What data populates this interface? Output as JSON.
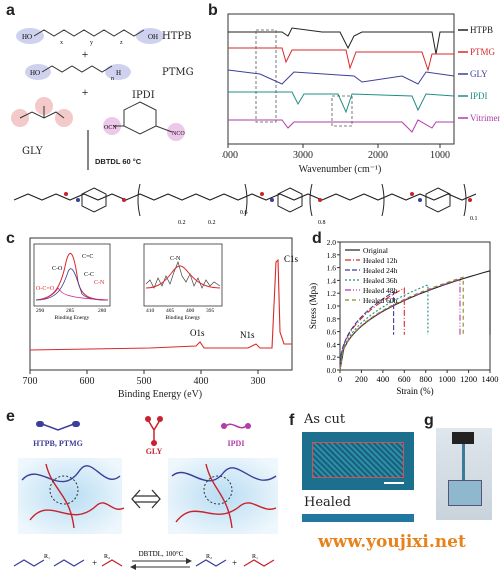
{
  "panels": {
    "a": {
      "label": "a",
      "molecules": [
        "HTPB",
        "PTMG",
        "GLY",
        "IPDI"
      ],
      "subscripts": {
        "htpb_x": "x",
        "htpb_y": "y",
        "htpb_z": "z",
        "ptmg_n": "n"
      },
      "plus": "+",
      "catalyst": "DBTDL 60 °C",
      "chain_labels": [
        "0.2",
        "0.2",
        "0.6",
        "0.8",
        "0.1"
      ]
    },
    "b": {
      "label": "b",
      "xlabel": "Wavenumber (cm⁻¹)",
      "legend": [
        {
          "name": "HTPB",
          "color": "#222222"
        },
        {
          "name": "PTMG",
          "color": "#d9292a"
        },
        {
          "name": "GLY",
          "color": "#3b3f9a"
        },
        {
          "name": "IPDI",
          "color": "#1f8f86"
        },
        {
          "name": "Vitrimer",
          "color": "#b23ca8"
        }
      ],
      "xticks": [
        "4000",
        "3000",
        "2000",
        "1000"
      ]
    },
    "c": {
      "label": "c",
      "xlabel": "Binding Energy (eV)",
      "xticks": [
        "700",
        "600",
        "500",
        "400",
        "300"
      ],
      "peaks": [
        "C1s",
        "O1s",
        "N1s"
      ],
      "inset1": {
        "xlabel": "Binding Energy",
        "xticks": [
          "290",
          "285",
          "280"
        ],
        "labels": [
          "C=C",
          "C-O",
          "C-C",
          "C-N",
          "O-C=O"
        ]
      },
      "inset2": {
        "xlabel": "Binding Energy",
        "xticks": [
          "410",
          "405",
          "400",
          "395"
        ],
        "labels": [
          "C-N"
        ]
      }
    },
    "d": {
      "label": "d",
      "xlabel": "Strain (%)",
      "ylabel": "Stress (Mpa)"
    },
    "e": {
      "label": "e",
      "legend": [
        {
          "name": "HTPB, PTMG",
          "color": "#3b3f9a"
        },
        {
          "name": "GLY",
          "color": "#c8232c"
        },
        {
          "name": "IPDI",
          "color": "#b23ca8"
        }
      ],
      "reaction": "DBTDL, 100°C",
      "r1": "R₁",
      "r2": "R₂",
      "plus": "+"
    },
    "f": {
      "label": "f",
      "as_cut": "As cut",
      "healed": "Healed"
    },
    "g": {
      "label": "g"
    }
  },
  "chart_data": [
    {
      "type": "line",
      "panel": "d",
      "xlabel": "Strain (%)",
      "ylabel": "Stress (Mpa)",
      "xlim": [
        0,
        1400
      ],
      "ylim": [
        0,
        2.0
      ],
      "xticks": [
        0,
        200,
        400,
        600,
        800,
        1000,
        1200,
        1400
      ],
      "yticks": [
        0.0,
        0.2,
        0.4,
        0.6,
        0.8,
        1.0,
        1.2,
        1.4,
        1.6,
        1.8,
        2.0
      ],
      "legend_position": "top-left",
      "series": [
        {
          "name": "Original",
          "color": "#222222",
          "dash": "",
          "break_strain": 1400,
          "break_stress": 1.55
        },
        {
          "name": "Healed 12h",
          "color": "#d9292a",
          "dash": "6,2,1,2",
          "break_strain": 600,
          "break_stress": 1.28
        },
        {
          "name": "Healed 24h",
          "color": "#3b3f9a",
          "dash": "5,2",
          "break_strain": 500,
          "break_stress": 1.22
        },
        {
          "name": "Healed 36h",
          "color": "#1f8f86",
          "dash": "2,2",
          "break_strain": 820,
          "break_stress": 1.33
        },
        {
          "name": "Healed 48h",
          "color": "#b23ca8",
          "dash": "6,2,1,2,1,2",
          "break_strain": 1120,
          "break_stress": 1.42
        },
        {
          "name": "Healed 60h",
          "color": "#8a8a1f",
          "dash": "4,3",
          "break_strain": 1150,
          "break_stress": 1.45
        }
      ]
    }
  ],
  "watermark": "www.youjixi.net"
}
